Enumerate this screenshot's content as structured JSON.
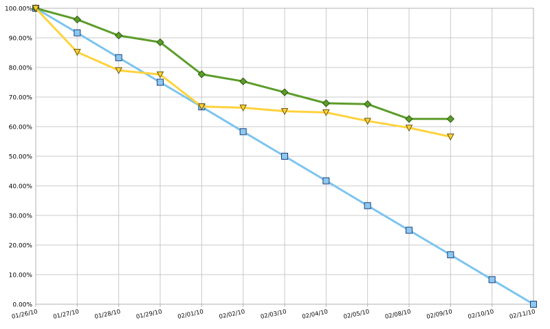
{
  "chart_data": {
    "type": "line",
    "title": "",
    "xlabel": "",
    "ylabel": "",
    "categories": [
      "01/26/10",
      "01/27/10",
      "01/28/10",
      "01/29/10",
      "02/01/10",
      "02/02/10",
      "02/03/10",
      "02/04/10",
      "02/05/10",
      "02/08/10",
      "02/09/10",
      "02/10/10",
      "02/11/10"
    ],
    "ylim": [
      0,
      100
    ],
    "yticks": [
      "0.00%",
      "10.00%",
      "20.00%",
      "30.00%",
      "40.00%",
      "50.00%",
      "60.00%",
      "70.00%",
      "80.00%",
      "90.00%",
      "100.00%"
    ],
    "grid": true,
    "legend": "none",
    "series": [
      {
        "values": [
          100,
          91.7,
          83.3,
          75.0,
          66.7,
          58.3,
          50.0,
          41.7,
          33.3,
          25.0,
          16.7,
          8.3,
          0.0
        ],
        "color": "#7cc4f0",
        "marker": "square",
        "marker_fill": "#8cc8f0",
        "marker_stroke": "#1f3f7a"
      },
      {
        "values": [
          100,
          96.2,
          90.8,
          88.5,
          77.7,
          75.3,
          71.6,
          67.9,
          67.6,
          62.6,
          62.6,
          null,
          null
        ],
        "color": "#5c9c2a",
        "marker": "diamond",
        "marker_fill": "#5c9c2a",
        "marker_stroke": "#2d5a10"
      },
      {
        "values": [
          100,
          85.2,
          79.0,
          77.6,
          66.8,
          66.4,
          65.2,
          64.8,
          61.9,
          59.6,
          56.6,
          null,
          null
        ],
        "color": "#ffd23c",
        "marker": "triangle-down",
        "marker_fill": "#ffd23c",
        "marker_stroke": "#6a5200"
      }
    ]
  }
}
